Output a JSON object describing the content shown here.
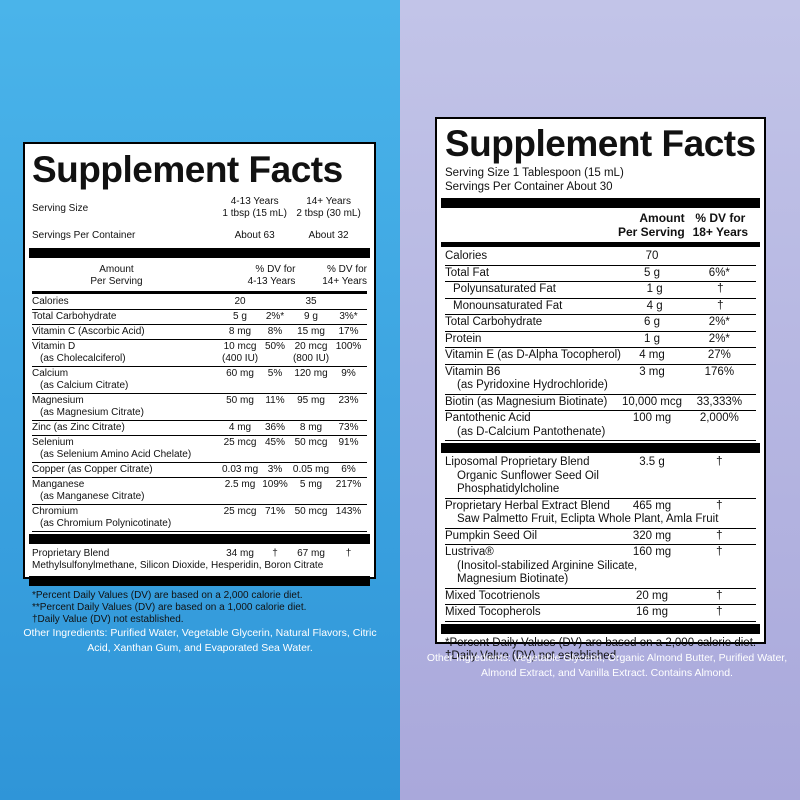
{
  "left": {
    "title": "Supplement Facts",
    "serving_size_label": "Serving Size",
    "col_a_header": "4-13 Years",
    "col_b_header": "14+ Years",
    "col_a_serving": "1 tbsp (15 mL)",
    "col_b_serving": "2 tbsp (30 mL)",
    "servings_label": "Servings Per Container",
    "col_a_servings": "About 63",
    "col_b_servings": "About 32",
    "amount_header_1": "Amount",
    "amount_header_2": "Per Serving",
    "dv_a_header_1": "% DV for",
    "dv_a_header_2": "4-13 Years",
    "dv_b_header_1": "% DV for",
    "dv_b_header_2": "14+ Years",
    "nutrients": [
      {
        "name": "Calories",
        "sub": "",
        "a_amt": "20",
        "a_dv": "",
        "b_amt": "35",
        "b_dv": ""
      },
      {
        "name": "Total Carbohydrate",
        "sub": "",
        "a_amt": "5 g",
        "a_dv": "2%*",
        "b_amt": "9 g",
        "b_dv": "3%*"
      },
      {
        "name": "Vitamin C (Ascorbic Acid)",
        "sub": "",
        "a_amt": "8 mg",
        "a_dv": "8%",
        "b_amt": "15 mg",
        "b_dv": "17%"
      },
      {
        "name": "Vitamin D",
        "sub": "(as Cholecalciferol)",
        "a_amt": "10 mcg",
        "a_amt2": "(400 IU)",
        "a_dv": "50%",
        "b_amt": "20 mcg",
        "b_amt2": "(800 IU)",
        "b_dv": "100%"
      },
      {
        "name": "Calcium",
        "sub": "(as Calcium Citrate)",
        "a_amt": "60 mg",
        "a_dv": "5%",
        "b_amt": "120 mg",
        "b_dv": "9%"
      },
      {
        "name": "Magnesium",
        "sub": "(as Magnesium Citrate)",
        "a_amt": "50 mg",
        "a_dv": "11%",
        "b_amt": "95 mg",
        "b_dv": "23%"
      },
      {
        "name": "Zinc (as Zinc Citrate)",
        "sub": "",
        "a_amt": "4 mg",
        "a_dv": "36%",
        "b_amt": "8 mg",
        "b_dv": "73%"
      },
      {
        "name": "Selenium",
        "sub": "(as Selenium Amino Acid Chelate)",
        "a_amt": "25 mcg",
        "a_dv": "45%",
        "b_amt": "50 mcg",
        "b_dv": "91%"
      },
      {
        "name": "Copper (as Copper Citrate)",
        "sub": "",
        "a_amt": "0.03 mg",
        "a_dv": "3%",
        "b_amt": "0.05 mg",
        "b_dv": "6%"
      },
      {
        "name": "Manganese",
        "sub": "(as Manganese Citrate)",
        "a_amt": "2.5 mg",
        "a_dv": "109%",
        "b_amt": "5 mg",
        "b_dv": "217%"
      },
      {
        "name": "Chromium",
        "sub": "(as Chromium Polynicotinate)",
        "a_amt": "25 mcg",
        "a_dv": "71%",
        "b_amt": "50 mcg",
        "b_dv": "143%"
      }
    ],
    "blend": {
      "name": "Proprietary Blend",
      "a_amt": "34 mg",
      "a_dv": "†",
      "b_amt": "67 mg",
      "b_dv": "†",
      "ingredients": "Methylsulfonylmethane, Silicon Dioxide, Hesperidin, Boron Citrate"
    },
    "footnotes": [
      "*Percent Daily Values (DV) are based on a 2,000 calorie diet.",
      "**Percent Daily Values (DV) are based on a 1,000 calorie diet.",
      "†Daily Value (DV) not established."
    ],
    "other_ingredients": "Other Ingredients: Purified Water, Vegetable Glycerin, Natural Flavors, Citric Acid, Xanthan Gum, and Evaporated Sea Water.",
    "bg_color": "#3aa6e2"
  },
  "right": {
    "title": "Supplement Facts",
    "serving_size": "Serving Size 1 Tablespoon (15 mL)",
    "servings_per": "Servings Per Container About 30",
    "amount_header_1": "Amount",
    "amount_header_2": "Per Serving",
    "dv_header_1": "% DV for",
    "dv_header_2": "18+ Years",
    "group1": [
      {
        "name": "Calories",
        "sub": "",
        "amt": "70",
        "dv": "",
        "indent": false
      },
      {
        "name": "Total Fat",
        "sub": "",
        "amt": "5 g",
        "dv": "6%*",
        "indent": false
      },
      {
        "name": "Polyunsaturated Fat",
        "sub": "",
        "amt": "1 g",
        "dv": "†",
        "indent": true
      },
      {
        "name": "Monounsaturated Fat",
        "sub": "",
        "amt": "4 g",
        "dv": "†",
        "indent": true
      },
      {
        "name": "Total Carbohydrate",
        "sub": "",
        "amt": "6 g",
        "dv": "2%*",
        "indent": false
      },
      {
        "name": "Protein",
        "sub": "",
        "amt": "1 g",
        "dv": "2%*",
        "indent": false
      },
      {
        "name": "Vitamin E (as D-Alpha Tocopherol)",
        "sub": "",
        "amt": "4 mg",
        "dv": "27%",
        "indent": false
      },
      {
        "name": "Vitamin B6",
        "sub": "(as Pyridoxine Hydrochloride)",
        "amt": "3 mg",
        "dv": "176%",
        "indent": false
      },
      {
        "name": "Biotin (as Magnesium Biotinate)",
        "sub": "",
        "amt": "10,000 mcg",
        "dv": "33,333%",
        "indent": false
      },
      {
        "name": "Pantothenic Acid",
        "sub": "(as D-Calcium Pantothenate)",
        "amt": "100 mg",
        "dv": "2,000%",
        "indent": false
      }
    ],
    "group2": [
      {
        "name": "Liposomal Proprietary Blend",
        "sub": "Organic Sunflower Seed Oil",
        "sub2": "Phosphatidylcholine",
        "amt": "3.5 g",
        "dv": "†"
      },
      {
        "name": "Proprietary Herbal Extract Blend",
        "sub": "Saw Palmetto Fruit, Eclipta Whole Plant, Amla Fruit",
        "sub2": "",
        "amt": "465 mg",
        "dv": "†"
      },
      {
        "name": "Pumpkin Seed Oil",
        "sub": "",
        "sub2": "",
        "amt": "320 mg",
        "dv": "†"
      },
      {
        "name": "Lustriva®",
        "sub": "(Inositol-stabilized Arginine Silicate,",
        "sub2": "Magnesium Biotinate)",
        "amt": "160 mg",
        "dv": "†"
      },
      {
        "name": "Mixed Tocotrienols",
        "sub": "",
        "sub2": "",
        "amt": "20 mg",
        "dv": "†"
      },
      {
        "name": "Mixed Tocopherols",
        "sub": "",
        "sub2": "",
        "amt": "16 mg",
        "dv": "†"
      }
    ],
    "footnotes": [
      "*Percent Daily Values (DV) are based on a 2,000 calorie diet.",
      "†Daily Value (DV) not established."
    ],
    "other_ingredients": "Other Ingredients: Vegetable Glycerin, Organic Almond Butter, Purified Water, Almond Extract, and Vanilla Extract. Contains Almond.",
    "bg_color": "#b6b6e2"
  }
}
